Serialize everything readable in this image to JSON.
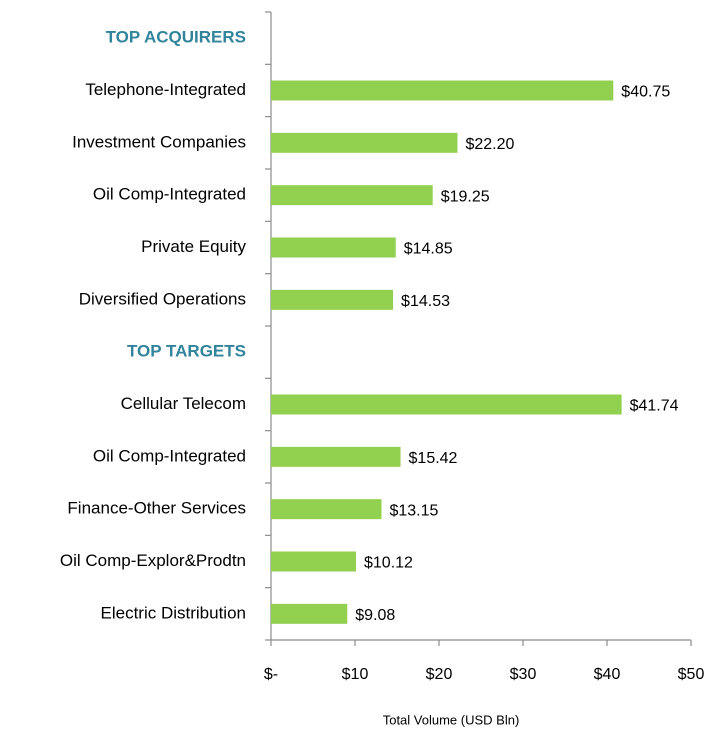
{
  "chart_data": {
    "type": "bar",
    "orientation": "horizontal",
    "categories": [
      "TOP ACQUIRERS",
      "Telephone-Integrated",
      "Investment Companies",
      "Oil Comp-Integrated",
      "Private Equity",
      "Diversified Operations",
      "TOP TARGETS",
      "Cellular Telecom",
      "Oil Comp-Integrated",
      "Finance-Other Services",
      "Oil Comp-Explor&Prodtn",
      "Electric Distribution"
    ],
    "values": [
      null,
      40.75,
      22.2,
      19.25,
      14.85,
      14.53,
      null,
      41.74,
      15.42,
      13.15,
      10.12,
      9.08
    ],
    "value_labels": [
      null,
      "$40.75",
      "$22.20",
      "$19.25",
      "$14.85",
      "$14.53",
      null,
      "$41.74",
      "$15.42",
      "$13.15",
      "$10.12",
      "$9.08"
    ],
    "color": "#92d050",
    "xlim": [
      0,
      50
    ],
    "xticks": [
      {
        "value": 0,
        "label": "$-"
      },
      {
        "value": 10,
        "label": "$10"
      },
      {
        "value": 20,
        "label": "$20"
      },
      {
        "value": 30,
        "label": "$30"
      },
      {
        "value": 40,
        "label": "$40"
      },
      {
        "value": 50,
        "label": "$50"
      }
    ],
    "xlabel": "Total Volume (USD Bln)"
  }
}
